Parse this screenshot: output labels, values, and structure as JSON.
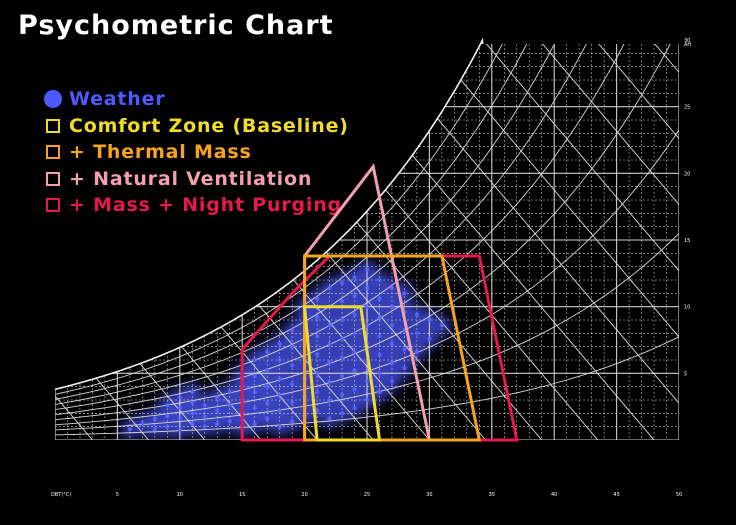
{
  "chart_data": {
    "type": "scatter",
    "title": "Psychometric Chart",
    "xlabel": "DBT(°C)",
    "ylabel": "AH",
    "xlim": [
      0,
      50
    ],
    "ylim": [
      0,
      30
    ],
    "x_ticks": [
      "DBT(°C)",
      "5",
      "10",
      "15",
      "20",
      "25",
      "30",
      "35",
      "40",
      "45",
      "50"
    ],
    "y_ticks": [
      "5",
      "10",
      "15",
      "20",
      "25",
      "30",
      "AH"
    ],
    "grid": true,
    "legend_position": "top-left",
    "series": [
      {
        "name": "Weather",
        "kind": "scatter",
        "color": "#4e59ff",
        "marker": "dot",
        "points": [
          [
            12,
            1.0
          ],
          [
            12,
            1.8
          ],
          [
            12,
            2.6
          ],
          [
            13,
            1.2
          ],
          [
            13,
            2.2
          ],
          [
            13,
            3.2
          ],
          [
            14,
            1.4
          ],
          [
            14,
            2.6
          ],
          [
            14,
            3.6
          ],
          [
            15,
            1.0
          ],
          [
            15,
            2.0
          ],
          [
            15,
            3.0
          ],
          [
            15,
            4.0
          ],
          [
            15,
            5.0
          ],
          [
            16,
            1.2
          ],
          [
            16,
            2.4
          ],
          [
            16,
            3.6
          ],
          [
            16,
            4.8
          ],
          [
            16,
            6.0
          ],
          [
            17,
            1.6
          ],
          [
            17,
            2.8
          ],
          [
            17,
            4.0
          ],
          [
            17,
            5.2
          ],
          [
            17,
            6.6
          ],
          [
            18,
            1.0
          ],
          [
            18,
            2.2
          ],
          [
            18,
            3.4
          ],
          [
            18,
            4.6
          ],
          [
            18,
            6.0
          ],
          [
            18,
            7.2
          ],
          [
            19,
            1.4
          ],
          [
            19,
            2.8
          ],
          [
            19,
            4.2
          ],
          [
            19,
            5.6
          ],
          [
            19,
            7.0
          ],
          [
            19,
            8.2
          ],
          [
            20,
            1.8
          ],
          [
            20,
            3.2
          ],
          [
            20,
            4.6
          ],
          [
            20,
            6.0
          ],
          [
            20,
            7.4
          ],
          [
            20,
            8.8
          ],
          [
            20,
            10.0
          ],
          [
            21,
            2.2
          ],
          [
            21,
            3.6
          ],
          [
            21,
            5.0
          ],
          [
            21,
            6.4
          ],
          [
            21,
            7.8
          ],
          [
            21,
            9.2
          ],
          [
            21,
            10.6
          ],
          [
            22,
            1.6
          ],
          [
            22,
            3.0
          ],
          [
            22,
            4.4
          ],
          [
            22,
            5.8
          ],
          [
            22,
            7.2
          ],
          [
            22,
            8.6
          ],
          [
            22,
            10.0
          ],
          [
            22,
            11.4
          ],
          [
            23,
            2.0
          ],
          [
            23,
            3.4
          ],
          [
            23,
            4.8
          ],
          [
            23,
            6.2
          ],
          [
            23,
            7.6
          ],
          [
            23,
            9.0
          ],
          [
            23,
            10.4
          ],
          [
            23,
            11.8
          ],
          [
            24,
            2.4
          ],
          [
            24,
            3.8
          ],
          [
            24,
            5.2
          ],
          [
            24,
            6.6
          ],
          [
            24,
            8.0
          ],
          [
            24,
            9.4
          ],
          [
            24,
            10.8
          ],
          [
            24,
            12.2
          ],
          [
            25,
            3.0
          ],
          [
            25,
            4.4
          ],
          [
            25,
            5.8
          ],
          [
            25,
            7.2
          ],
          [
            25,
            8.6
          ],
          [
            25,
            10.0
          ],
          [
            25,
            11.4
          ],
          [
            25,
            12.8
          ],
          [
            26,
            3.6
          ],
          [
            26,
            5.0
          ],
          [
            26,
            6.4
          ],
          [
            26,
            7.8
          ],
          [
            26,
            9.2
          ],
          [
            26,
            10.6
          ],
          [
            26,
            12.0
          ],
          [
            27,
            4.4
          ],
          [
            27,
            5.8
          ],
          [
            27,
            7.2
          ],
          [
            27,
            8.6
          ],
          [
            27,
            10.0
          ],
          [
            27,
            11.4
          ],
          [
            28,
            5.4
          ],
          [
            28,
            6.8
          ],
          [
            28,
            8.2
          ],
          [
            28,
            9.6
          ],
          [
            28,
            11.0
          ],
          [
            29,
            6.6
          ],
          [
            29,
            8.0
          ],
          [
            29,
            9.4
          ],
          [
            30,
            7.6
          ],
          [
            30,
            9.0
          ],
          [
            31,
            8.6
          ],
          [
            8,
            0.8
          ],
          [
            8,
            1.6
          ],
          [
            9,
            1.0
          ],
          [
            9,
            1.8
          ],
          [
            9,
            2.6
          ],
          [
            10,
            0.8
          ],
          [
            10,
            1.6
          ],
          [
            10,
            2.4
          ],
          [
            10,
            3.2
          ],
          [
            11,
            1.2
          ],
          [
            11,
            2.0
          ],
          [
            11,
            2.8
          ],
          [
            11,
            3.6
          ],
          [
            6,
            0.8
          ],
          [
            7,
            1.2
          ]
        ]
      },
      {
        "name": "Comfort Zone (Baseline)",
        "kind": "zone",
        "color": "#f2dc2a",
        "polygon": [
          [
            21,
            0
          ],
          [
            26,
            0
          ],
          [
            24.5,
            10
          ],
          [
            20,
            10
          ]
        ]
      },
      {
        "name": "+ Thermal Mass",
        "kind": "zone",
        "color": "#f6a31f",
        "polygon": [
          [
            20,
            0
          ],
          [
            34,
            0
          ],
          [
            31,
            13.8
          ],
          [
            20,
            13.8
          ]
        ]
      },
      {
        "name": "+ Natural Ventilation",
        "kind": "zone",
        "color": "#f2a0ae",
        "polygon": [
          [
            20,
            0
          ],
          [
            30,
            0
          ],
          [
            25.5,
            20.5
          ],
          [
            20,
            13.8
          ]
        ]
      },
      {
        "name": "+ Mass + Night Purging",
        "kind": "zone",
        "color": "#e5194e",
        "polygon": [
          [
            15,
            0
          ],
          [
            37,
            0
          ],
          [
            34,
            13.8
          ],
          [
            22,
            13.8
          ],
          [
            19,
            11
          ],
          [
            15,
            6.8
          ]
        ]
      }
    ]
  }
}
